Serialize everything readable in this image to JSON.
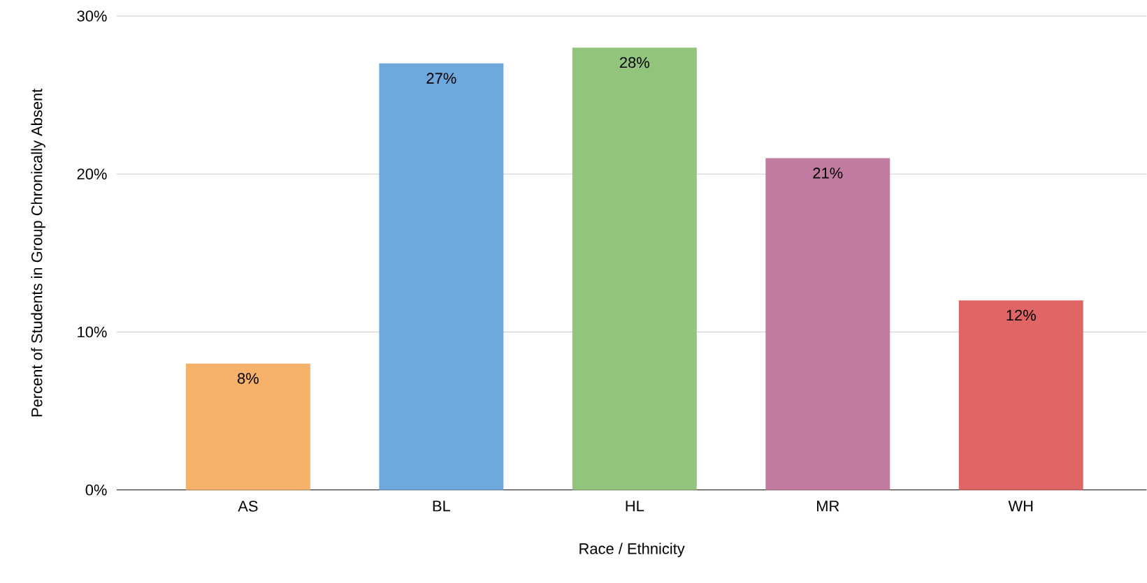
{
  "chart_data": {
    "type": "bar",
    "xlabel": "Race / Ethnicity",
    "ylabel": "Percent of Students in Group Chronically Absent",
    "categories": [
      "AS",
      "BL",
      "HL",
      "MR",
      "WH"
    ],
    "values": [
      8,
      27,
      28,
      21,
      12
    ],
    "colors": [
      "#f6b26b",
      "#6fa8dc",
      "#93c47d",
      "#c27ba0",
      "#e06666"
    ],
    "value_labels": [
      "8%",
      "27%",
      "28%",
      "21%",
      "12%"
    ],
    "ylim": [
      0,
      30
    ],
    "yticks": [
      {
        "value": 0,
        "label": "0%"
      },
      {
        "value": 10,
        "label": "10%"
      },
      {
        "value": 20,
        "label": "20%"
      },
      {
        "value": 30,
        "label": "30%"
      }
    ],
    "grid": "y"
  }
}
